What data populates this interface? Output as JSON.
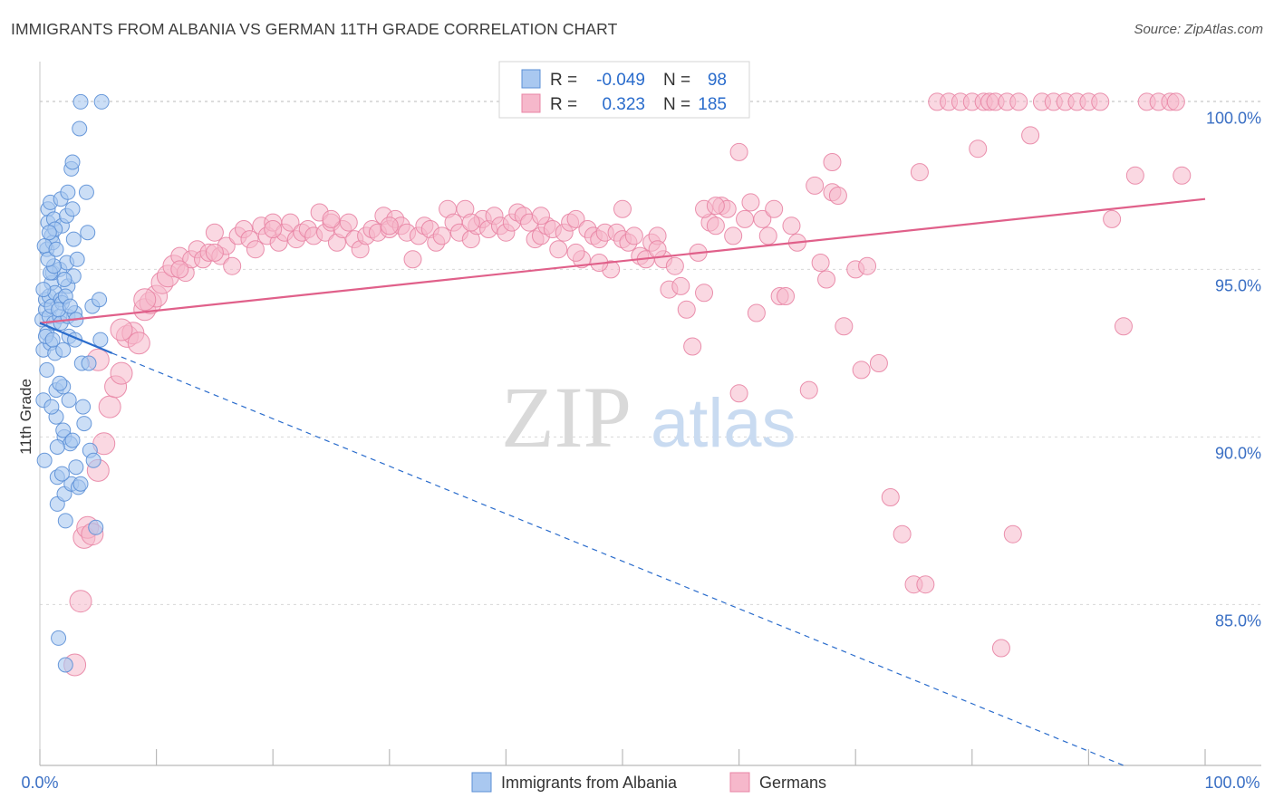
{
  "header": {
    "title": "IMMIGRANTS FROM ALBANIA VS GERMAN 11TH GRADE CORRELATION CHART",
    "source": "Source: ZipAtlas.com"
  },
  "watermark": {
    "zip": "ZIP",
    "atlas": "atlas"
  },
  "chart_data": {
    "type": "scatter",
    "ylabel": "11th Grade",
    "xlim": [
      0,
      100
    ],
    "ylim": [
      80.2,
      101.2
    ],
    "x_tick_labels": [
      "0.0%",
      "100.0%"
    ],
    "y_ticks": [
      {
        "value": 85,
        "label": "85.0%"
      },
      {
        "value": 90,
        "label": "90.0%"
      },
      {
        "value": 95,
        "label": "95.0%"
      },
      {
        "value": 100,
        "label": "100.0%"
      }
    ],
    "grid": true,
    "legend": {
      "placement": "top-center",
      "rows": [
        {
          "r_label": "R =",
          "r": "-0.049",
          "n_label": "N =",
          "n": "98"
        },
        {
          "r_label": "R =",
          "r": "0.323",
          "n_label": "N =",
          "n": "185"
        }
      ]
    },
    "bottom_legend": [
      "Immigrants from Albania",
      "Germans"
    ],
    "colors": {
      "blue_fill": "#a9c8f0",
      "blue_stroke": "#5b8fd6",
      "blue_line": "#2a6ccc",
      "pink_fill": "#f6b8cb",
      "pink_stroke": "#e884a4",
      "pink_line": "#e0608a",
      "tick_label": "#3a6fc4",
      "grid": "#d8d8d8"
    },
    "series": [
      {
        "name": "Immigrants from Albania",
        "r": -0.049,
        "n": 98,
        "trend_solid": {
          "x": [
            0,
            6.2
          ],
          "y": [
            93.4,
            92.5
          ]
        },
        "trend_dashed": {
          "x": [
            6.2,
            93
          ],
          "y": [
            92.5,
            80.2
          ]
        },
        "points": [
          [
            0.2,
            93.5
          ],
          [
            0.3,
            92.6
          ],
          [
            0.3,
            91.1
          ],
          [
            0.4,
            89.3
          ],
          [
            0.5,
            93.8
          ],
          [
            0.5,
            94.1
          ],
          [
            0.6,
            93.1
          ],
          [
            0.6,
            95.6
          ],
          [
            0.7,
            96.8
          ],
          [
            0.7,
            96.4
          ],
          [
            0.8,
            94.2
          ],
          [
            0.8,
            93.6
          ],
          [
            0.9,
            92.8
          ],
          [
            0.9,
            97.0
          ],
          [
            1.0,
            96.0
          ],
          [
            1.0,
            94.6
          ],
          [
            1.0,
            93.9
          ],
          [
            1.1,
            95.8
          ],
          [
            1.1,
            94.9
          ],
          [
            1.2,
            96.5
          ],
          [
            1.2,
            93.4
          ],
          [
            1.3,
            94.3
          ],
          [
            1.3,
            92.5
          ],
          [
            1.4,
            91.4
          ],
          [
            1.4,
            90.6
          ],
          [
            1.5,
            88.8
          ],
          [
            1.5,
            88.0
          ],
          [
            1.6,
            84.0
          ],
          [
            1.7,
            95.0
          ],
          [
            1.7,
            93.6
          ],
          [
            1.8,
            94.1
          ],
          [
            1.8,
            93.4
          ],
          [
            1.9,
            96.3
          ],
          [
            1.9,
            94.0
          ],
          [
            2.0,
            92.6
          ],
          [
            2.0,
            91.5
          ],
          [
            2.1,
            90.0
          ],
          [
            2.1,
            88.3
          ],
          [
            2.2,
            87.5
          ],
          [
            2.2,
            83.2
          ],
          [
            2.3,
            96.6
          ],
          [
            2.3,
            95.2
          ],
          [
            2.4,
            94.5
          ],
          [
            2.4,
            93.6
          ],
          [
            2.5,
            93.0
          ],
          [
            2.5,
            91.1
          ],
          [
            2.6,
            89.8
          ],
          [
            2.7,
            88.6
          ],
          [
            2.7,
            98.0
          ],
          [
            2.8,
            98.2
          ],
          [
            2.8,
            96.8
          ],
          [
            2.9,
            95.9
          ],
          [
            2.9,
            94.8
          ],
          [
            3.0,
            93.7
          ],
          [
            3.0,
            92.9
          ],
          [
            3.1,
            89.1
          ],
          [
            3.2,
            95.3
          ],
          [
            3.3,
            88.5
          ],
          [
            3.4,
            99.2
          ],
          [
            3.5,
            100.0
          ],
          [
            3.6,
            92.2
          ],
          [
            3.7,
            90.9
          ],
          [
            3.8,
            90.4
          ],
          [
            4.0,
            97.3
          ],
          [
            4.1,
            96.1
          ],
          [
            4.2,
            92.2
          ],
          [
            4.3,
            89.6
          ],
          [
            4.5,
            93.9
          ],
          [
            4.6,
            89.3
          ],
          [
            4.8,
            87.3
          ],
          [
            5.1,
            94.1
          ],
          [
            5.2,
            92.9
          ],
          [
            5.3,
            100.0
          ],
          [
            0.4,
            95.7
          ],
          [
            0.9,
            94.9
          ],
          [
            1.2,
            95.1
          ],
          [
            1.6,
            93.8
          ],
          [
            2.2,
            94.2
          ],
          [
            2.6,
            93.9
          ],
          [
            3.1,
            93.5
          ],
          [
            0.6,
            92.0
          ],
          [
            1.0,
            90.9
          ],
          [
            1.5,
            89.7
          ],
          [
            1.9,
            88.9
          ],
          [
            0.3,
            94.4
          ],
          [
            0.7,
            95.3
          ],
          [
            1.3,
            96.2
          ],
          [
            1.8,
            97.1
          ],
          [
            2.4,
            97.3
          ],
          [
            0.5,
            93.0
          ],
          [
            1.1,
            92.9
          ],
          [
            1.7,
            91.6
          ],
          [
            2.0,
            90.2
          ],
          [
            2.8,
            89.9
          ],
          [
            3.5,
            88.6
          ],
          [
            0.8,
            96.1
          ],
          [
            1.4,
            95.6
          ],
          [
            2.1,
            94.7
          ]
        ]
      },
      {
        "name": "Germans",
        "r": 0.323,
        "n": 185,
        "trend": {
          "x": [
            0,
            100
          ],
          "y": [
            93.4,
            97.1
          ]
        },
        "points": [
          [
            3.0,
            83.2
          ],
          [
            3.5,
            85.1
          ],
          [
            3.8,
            87.0
          ],
          [
            4.1,
            87.3
          ],
          [
            4.5,
            87.1
          ],
          [
            5.0,
            89.0
          ],
          [
            5.5,
            89.8
          ],
          [
            6.0,
            90.9
          ],
          [
            6.5,
            91.5
          ],
          [
            7.0,
            91.9
          ],
          [
            7.5,
            93.0
          ],
          [
            8.0,
            93.1
          ],
          [
            8.5,
            92.8
          ],
          [
            9.0,
            93.8
          ],
          [
            9.5,
            94.0
          ],
          [
            10.0,
            94.2
          ],
          [
            10.5,
            94.6
          ],
          [
            11.0,
            94.8
          ],
          [
            11.5,
            95.1
          ],
          [
            12.0,
            95.4
          ],
          [
            12.5,
            94.9
          ],
          [
            13.0,
            95.3
          ],
          [
            13.5,
            95.6
          ],
          [
            14.0,
            95.3
          ],
          [
            14.5,
            95.5
          ],
          [
            15.0,
            96.1
          ],
          [
            15.5,
            95.4
          ],
          [
            16.0,
            95.7
          ],
          [
            16.5,
            95.1
          ],
          [
            17.0,
            96.0
          ],
          [
            17.5,
            96.2
          ],
          [
            18.0,
            95.9
          ],
          [
            18.5,
            95.6
          ],
          [
            19.0,
            96.3
          ],
          [
            19.5,
            96.0
          ],
          [
            20.0,
            96.4
          ],
          [
            20.5,
            95.8
          ],
          [
            21.0,
            96.1
          ],
          [
            21.5,
            96.4
          ],
          [
            22.0,
            95.9
          ],
          [
            22.5,
            96.1
          ],
          [
            23.0,
            96.2
          ],
          [
            23.5,
            96.0
          ],
          [
            24.0,
            96.7
          ],
          [
            24.5,
            96.1
          ],
          [
            25.0,
            96.4
          ],
          [
            25.5,
            95.8
          ],
          [
            26.0,
            96.2
          ],
          [
            26.5,
            96.4
          ],
          [
            27.0,
            95.9
          ],
          [
            27.5,
            95.6
          ],
          [
            28.0,
            96.0
          ],
          [
            28.5,
            96.2
          ],
          [
            29.0,
            96.1
          ],
          [
            29.5,
            96.6
          ],
          [
            30.0,
            96.2
          ],
          [
            30.5,
            96.5
          ],
          [
            31.0,
            96.3
          ],
          [
            31.5,
            96.1
          ],
          [
            32.0,
            95.3
          ],
          [
            32.5,
            96.0
          ],
          [
            33.0,
            96.3
          ],
          [
            33.5,
            96.2
          ],
          [
            34.0,
            95.8
          ],
          [
            34.5,
            96.0
          ],
          [
            35.0,
            96.8
          ],
          [
            35.5,
            96.4
          ],
          [
            36.0,
            96.1
          ],
          [
            36.5,
            96.8
          ],
          [
            37.0,
            95.9
          ],
          [
            37.5,
            96.3
          ],
          [
            38.0,
            96.5
          ],
          [
            38.5,
            96.2
          ],
          [
            39.0,
            96.6
          ],
          [
            39.5,
            96.3
          ],
          [
            40.0,
            96.1
          ],
          [
            40.5,
            96.4
          ],
          [
            41.0,
            96.7
          ],
          [
            41.5,
            96.6
          ],
          [
            42.0,
            96.4
          ],
          [
            42.5,
            95.9
          ],
          [
            43.0,
            96.0
          ],
          [
            43.5,
            96.3
          ],
          [
            44.0,
            96.2
          ],
          [
            44.5,
            95.6
          ],
          [
            45.0,
            96.1
          ],
          [
            45.5,
            96.4
          ],
          [
            46.0,
            96.5
          ],
          [
            46.5,
            95.3
          ],
          [
            47.0,
            96.2
          ],
          [
            47.5,
            96.0
          ],
          [
            48.0,
            95.9
          ],
          [
            48.5,
            96.1
          ],
          [
            49.0,
            95.0
          ],
          [
            49.5,
            96.1
          ],
          [
            50.0,
            95.9
          ],
          [
            50.5,
            95.8
          ],
          [
            51.0,
            96.0
          ],
          [
            51.5,
            95.4
          ],
          [
            52.0,
            95.3
          ],
          [
            52.5,
            95.8
          ],
          [
            53.0,
            96.0
          ],
          [
            53.5,
            95.3
          ],
          [
            54.0,
            94.4
          ],
          [
            54.5,
            95.1
          ],
          [
            55.0,
            94.5
          ],
          [
            55.5,
            93.8
          ],
          [
            56.0,
            92.7
          ],
          [
            56.5,
            95.5
          ],
          [
            57.0,
            94.3
          ],
          [
            57.5,
            96.4
          ],
          [
            58.0,
            96.3
          ],
          [
            58.5,
            96.9
          ],
          [
            59.0,
            96.8
          ],
          [
            59.5,
            96.0
          ],
          [
            60.0,
            91.3
          ],
          [
            60.5,
            96.5
          ],
          [
            61.0,
            97.0
          ],
          [
            61.5,
            93.7
          ],
          [
            62.0,
            96.5
          ],
          [
            62.5,
            96.0
          ],
          [
            63.0,
            96.8
          ],
          [
            63.5,
            94.2
          ],
          [
            64.0,
            94.2
          ],
          [
            64.5,
            96.3
          ],
          [
            65.0,
            95.8
          ],
          [
            66.0,
            91.4
          ],
          [
            66.5,
            97.5
          ],
          [
            67.0,
            95.2
          ],
          [
            67.5,
            94.7
          ],
          [
            68.0,
            97.3
          ],
          [
            68.5,
            97.2
          ],
          [
            69.0,
            93.3
          ],
          [
            70.0,
            95.0
          ],
          [
            70.5,
            92.0
          ],
          [
            71.0,
            95.1
          ],
          [
            72.0,
            92.2
          ],
          [
            73.0,
            88.2
          ],
          [
            74.0,
            87.1
          ],
          [
            75.0,
            85.6
          ],
          [
            76.0,
            85.6
          ],
          [
            77.0,
            100.0
          ],
          [
            78.0,
            100.0
          ],
          [
            79.0,
            100.0
          ],
          [
            80.0,
            100.0
          ],
          [
            81.0,
            100.0
          ],
          [
            81.5,
            100.0
          ],
          [
            82.0,
            100.0
          ],
          [
            83.0,
            100.0
          ],
          [
            84.0,
            100.0
          ],
          [
            85.0,
            99.0
          ],
          [
            86.0,
            100.0
          ],
          [
            87.0,
            100.0
          ],
          [
            88.0,
            100.0
          ],
          [
            89.0,
            100.0
          ],
          [
            90.0,
            100.0
          ],
          [
            91.0,
            100.0
          ],
          [
            92.0,
            96.5
          ],
          [
            93.0,
            93.3
          ],
          [
            94.0,
            97.8
          ],
          [
            95.0,
            100.0
          ],
          [
            96.0,
            100.0
          ],
          [
            97.0,
            100.0
          ],
          [
            97.5,
            100.0
          ],
          [
            98.0,
            97.8
          ],
          [
            68.0,
            98.2
          ],
          [
            60.0,
            98.5
          ],
          [
            80.5,
            98.6
          ],
          [
            75.5,
            97.9
          ],
          [
            82.5,
            83.7
          ],
          [
            83.5,
            87.1
          ],
          [
            57.0,
            96.8
          ],
          [
            58.0,
            96.9
          ],
          [
            50.0,
            96.8
          ],
          [
            43.0,
            96.6
          ],
          [
            37.0,
            96.4
          ],
          [
            30.0,
            96.3
          ],
          [
            25.0,
            96.5
          ],
          [
            20.0,
            96.2
          ],
          [
            15.0,
            95.5
          ],
          [
            12.0,
            95.0
          ],
          [
            9.0,
            94.1
          ],
          [
            7.0,
            93.2
          ],
          [
            5.0,
            92.3
          ],
          [
            46.0,
            95.5
          ],
          [
            48.0,
            95.2
          ],
          [
            53.0,
            95.6
          ]
        ]
      }
    ]
  }
}
